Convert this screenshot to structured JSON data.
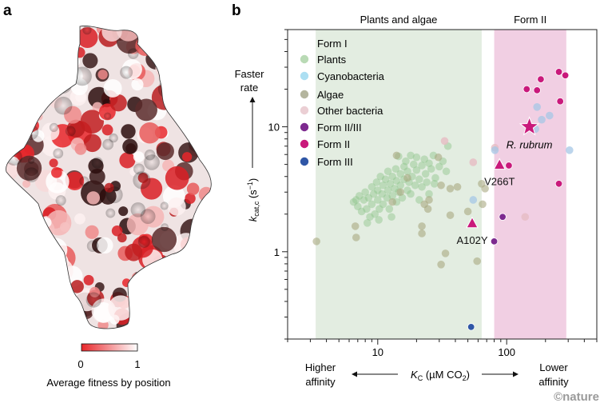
{
  "panel_a": {
    "label": "a",
    "colorbar": {
      "min_label": "0",
      "max_label": "1",
      "caption": "Average fitness by position",
      "low_color": "#e8262a",
      "high_color": "#ffffff"
    }
  },
  "panel_b": {
    "label": "b"
  },
  "chart_data": {
    "type": "scatter",
    "x_scale": "log",
    "y_scale": "log",
    "xlim": [
      2,
      500
    ],
    "ylim": [
      0.2,
      60
    ],
    "x_ticks": [
      {
        "value": 10,
        "label": "10"
      },
      {
        "value": 100,
        "label": "100"
      }
    ],
    "y_ticks": [
      {
        "value": 1,
        "label": "1"
      },
      {
        "value": 10,
        "label": "10"
      }
    ],
    "xlabel": {
      "main": "K",
      "sub": "C",
      "rest": " (µM CO",
      "sub2": "2",
      "end": ")"
    },
    "ylabel": {
      "main": "k",
      "sub": "cat,c",
      "rest": " (s",
      "sup": "−1",
      "end": ")"
    },
    "x_left_annotation": [
      "Higher",
      "affinity"
    ],
    "x_right_annotation": [
      "Lower",
      "affinity"
    ],
    "y_top_annotation": [
      "Faster",
      "rate"
    ],
    "grid": false,
    "bands": [
      {
        "label": "Plants and algae",
        "x_range": [
          3.3,
          64
        ],
        "color": "#e3ede1"
      },
      {
        "label": "Form II",
        "x_range": [
          80,
          290
        ],
        "color": "#f1cfe3"
      }
    ],
    "legend": {
      "placement": "top-left",
      "header": "Form I",
      "entries": [
        {
          "name": "Plants",
          "color": "#b9dab5"
        },
        {
          "name": "Cyanobacteria",
          "color": "#acdff2"
        },
        {
          "name": "Algae",
          "color": "#b4b59e"
        },
        {
          "name": "Other bacteria",
          "color": "#ebcfd4"
        },
        {
          "name": "Form II/III",
          "color": "#7d2a8f"
        },
        {
          "name": "Form II",
          "color": "#c9197b"
        },
        {
          "name": "Form III",
          "color": "#2f56a6"
        }
      ]
    },
    "series": [
      {
        "name": "Plants",
        "color": "#8cc48a",
        "opacity": 0.45,
        "points": [
          [
            6.5,
            2.5
          ],
          [
            7,
            2.3
          ],
          [
            7.2,
            2.8
          ],
          [
            7.5,
            2.1
          ],
          [
            7.8,
            2.6
          ],
          [
            8,
            3.0
          ],
          [
            8.2,
            2.2
          ],
          [
            8.5,
            2.7
          ],
          [
            8.7,
            1.9
          ],
          [
            9,
            3.3
          ],
          [
            9,
            2.4
          ],
          [
            9.3,
            2.9
          ],
          [
            9.5,
            2.0
          ],
          [
            9.8,
            3.6
          ],
          [
            10,
            2.6
          ],
          [
            10,
            3.1
          ],
          [
            10.3,
            2.2
          ],
          [
            10.5,
            4.0
          ],
          [
            10.8,
            2.9
          ],
          [
            11,
            3.4
          ],
          [
            11,
            2.4
          ],
          [
            11.5,
            3.8
          ],
          [
            11.8,
            2.7
          ],
          [
            12,
            4.4
          ],
          [
            12,
            3.1
          ],
          [
            12.3,
            2.2
          ],
          [
            12.5,
            3.5
          ],
          [
            13,
            2.8
          ],
          [
            13,
            4.0
          ],
          [
            13.5,
            3.2
          ],
          [
            13.8,
            4.6
          ],
          [
            14,
            2.5
          ],
          [
            14,
            3.7
          ],
          [
            14.5,
            5.8
          ],
          [
            14.5,
            3.0
          ],
          [
            15,
            4.2
          ],
          [
            15,
            3.4
          ],
          [
            15.5,
            2.7
          ],
          [
            16,
            4.8
          ],
          [
            16,
            3.8
          ],
          [
            16.5,
            5.3
          ],
          [
            17,
            3.1
          ],
          [
            17,
            4.4
          ],
          [
            17.5,
            3.6
          ],
          [
            18,
            5.9
          ],
          [
            18,
            2.9
          ],
          [
            18.5,
            4.0
          ],
          [
            19,
            5.0
          ],
          [
            19.5,
            3.4
          ],
          [
            20,
            4.5
          ],
          [
            20,
            5.7
          ],
          [
            21,
            3.8
          ],
          [
            21,
            2.6
          ],
          [
            22,
            4.9
          ],
          [
            22,
            3.3
          ],
          [
            23,
            5.5
          ],
          [
            23.5,
            4.2
          ],
          [
            24,
            3.6
          ],
          [
            25,
            5.1
          ],
          [
            26,
            4.6
          ],
          [
            27,
            5.9
          ],
          [
            28,
            3.9
          ],
          [
            30,
            4.8
          ],
          [
            32,
            5.3
          ],
          [
            34,
            4.4
          ],
          [
            35,
            7.0
          ],
          [
            8.3,
            1.7
          ],
          [
            10.2,
            1.8
          ],
          [
            6.8,
            2.6
          ],
          [
            12.8,
            1.9
          ],
          [
            25,
            2.9
          ],
          [
            27.5,
            3.5
          ]
        ]
      },
      {
        "name": "Algae",
        "color": "#a9a880",
        "opacity": 0.6,
        "points": [
          [
            3.35,
            1.21
          ],
          [
            6.7,
            1.6
          ],
          [
            6.8,
            1.3
          ],
          [
            22,
            1.6
          ],
          [
            22,
            1.4
          ],
          [
            33.5,
            0.97
          ],
          [
            31,
            0.79
          ],
          [
            59,
            0.84
          ],
          [
            36.5,
            1.96
          ],
          [
            50,
            2.1
          ],
          [
            65,
            2.4
          ],
          [
            24.5,
            2.2
          ],
          [
            23,
            2.4
          ],
          [
            25,
            2.6
          ],
          [
            29.5,
            5.7
          ],
          [
            31,
            3.4
          ],
          [
            36.5,
            3.2
          ],
          [
            41.5,
            3.3
          ],
          [
            64,
            3.5
          ],
          [
            68,
            3.2
          ],
          [
            14,
            5.9
          ],
          [
            15,
            3.0
          ],
          [
            13,
            2.5
          ],
          [
            17,
            3.9
          ]
        ]
      },
      {
        "name": "Other bacteria",
        "color": "#e6bcc3",
        "opacity": 0.8,
        "points": [
          [
            33,
            7.7
          ],
          [
            55,
            5.2
          ],
          [
            81,
            6.8
          ],
          [
            139,
            1.9
          ]
        ]
      },
      {
        "name": "Cyanobacteria",
        "color": "#a6c7e6",
        "opacity": 0.75,
        "points": [
          [
            55,
            2.6
          ],
          [
            81,
            6.5
          ],
          [
            307,
            6.5
          ],
          [
            172,
            14.4
          ],
          [
            187,
            11.4
          ],
          [
            215,
            12.3
          ],
          [
            167,
            9.6
          ]
        ]
      },
      {
        "name": "Form II/III",
        "color": "#7d2a8f",
        "opacity": 1,
        "points": [
          [
            93,
            1.9
          ],
          [
            80,
            1.21
          ]
        ]
      },
      {
        "name": "Form II",
        "color": "#c9197b",
        "opacity": 1,
        "points": [
          [
            254,
            27.5
          ],
          [
            285,
            25.8
          ],
          [
            184,
            24
          ],
          [
            143,
            20
          ],
          [
            172,
            19.6
          ],
          [
            260,
            16
          ],
          [
            104,
            4.9
          ],
          [
            254,
            3.5
          ]
        ]
      },
      {
        "name": "Form III",
        "color": "#2f56a6",
        "opacity": 1,
        "points": [
          [
            53,
            0.25
          ]
        ]
      }
    ],
    "annotations": [
      {
        "label": "R. rubrum",
        "marker": "star",
        "x": 150,
        "y": 10,
        "color": "#c9197b",
        "italic": true
      },
      {
        "label": "V266T",
        "marker": "triangle",
        "x": 88,
        "y": 5.0,
        "color": "#c9197b"
      },
      {
        "label": "A102Y",
        "marker": "triangle",
        "x": 54,
        "y": 1.7,
        "color": "#c9197b"
      }
    ]
  },
  "watermark": "©nature"
}
